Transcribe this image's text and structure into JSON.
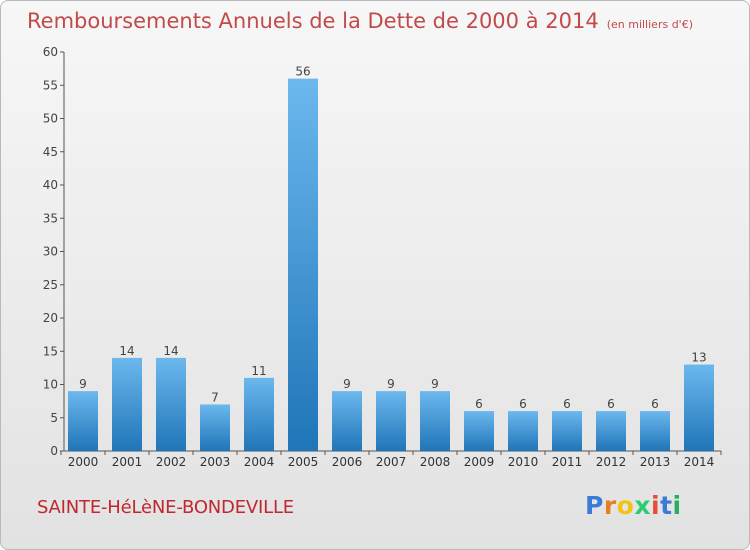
{
  "title": "Remboursements Annuels de la Dette de 2000 à 2014",
  "unit": "(en milliers d'€)",
  "commune": "SAINTE-HéLèNE-BONDEVILLE",
  "logo": {
    "letters": [
      "P",
      "r",
      "o",
      "x",
      "i",
      "t",
      "i"
    ],
    "colors": [
      "#3a7bd5",
      "#e67e22",
      "#f1c40f",
      "#2ecc71",
      "#e74c3c",
      "#3a7bd5",
      "#27ae60"
    ]
  },
  "colors": {
    "bar": "#3f97db",
    "bar_light": "#6cb8ee",
    "bar_dark": "#1f75b8",
    "title": "#c24a4a"
  },
  "chart_data": {
    "type": "bar",
    "title": "Remboursements Annuels de la Dette de 2000 à 2014",
    "ylabel": "en milliers d'€",
    "xlabel": "",
    "categories": [
      "2000",
      "2001",
      "2002",
      "2003",
      "2004",
      "2005",
      "2006",
      "2007",
      "2008",
      "2009",
      "2010",
      "2011",
      "2012",
      "2013",
      "2014"
    ],
    "values": [
      9,
      14,
      14,
      7,
      11,
      56,
      9,
      9,
      9,
      6,
      6,
      6,
      6,
      6,
      13
    ],
    "yticks": [
      0,
      5,
      10,
      15,
      20,
      25,
      30,
      35,
      40,
      45,
      50,
      55,
      60
    ],
    "ylim": [
      0,
      60
    ],
    "grid": false
  }
}
